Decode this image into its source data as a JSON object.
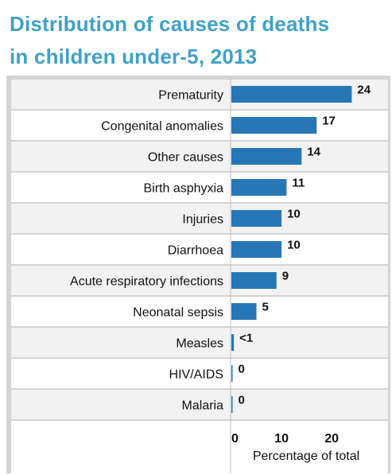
{
  "title_line1": "Distribution of causes of deaths",
  "title_line2": "in children under-5, 2013",
  "colors": {
    "title": "#3fa1c9",
    "bar": "#2777b6",
    "panel": "#d4d4d4",
    "row": "#f2f2f2",
    "row_alt": "#ffffff"
  },
  "chart_data": {
    "type": "bar",
    "orientation": "horizontal",
    "title": "Distribution of causes of deaths in children under-5, 2013",
    "xlabel": "Percentage of total",
    "ylabel": "",
    "xlim": [
      0,
      26
    ],
    "xticks": [
      0,
      10,
      20
    ],
    "xtick_labels": [
      "0",
      "10",
      "20"
    ],
    "grid": false,
    "categories": [
      "Prematurity",
      "Congenital anomalies",
      "Other causes",
      "Birth asphyxia",
      "Injuries",
      "Diarrhoea",
      "Acute respiratory infections",
      "Neonatal sepsis",
      "Measles",
      "HIV/AIDS",
      "Malaria"
    ],
    "values": [
      24,
      17,
      14,
      11,
      10,
      10,
      9,
      5,
      0.5,
      0.2,
      0.2
    ],
    "value_labels": [
      "24",
      "17",
      "14",
      "11",
      "10",
      "10",
      "9",
      "5",
      "<1",
      "0",
      "0"
    ]
  }
}
